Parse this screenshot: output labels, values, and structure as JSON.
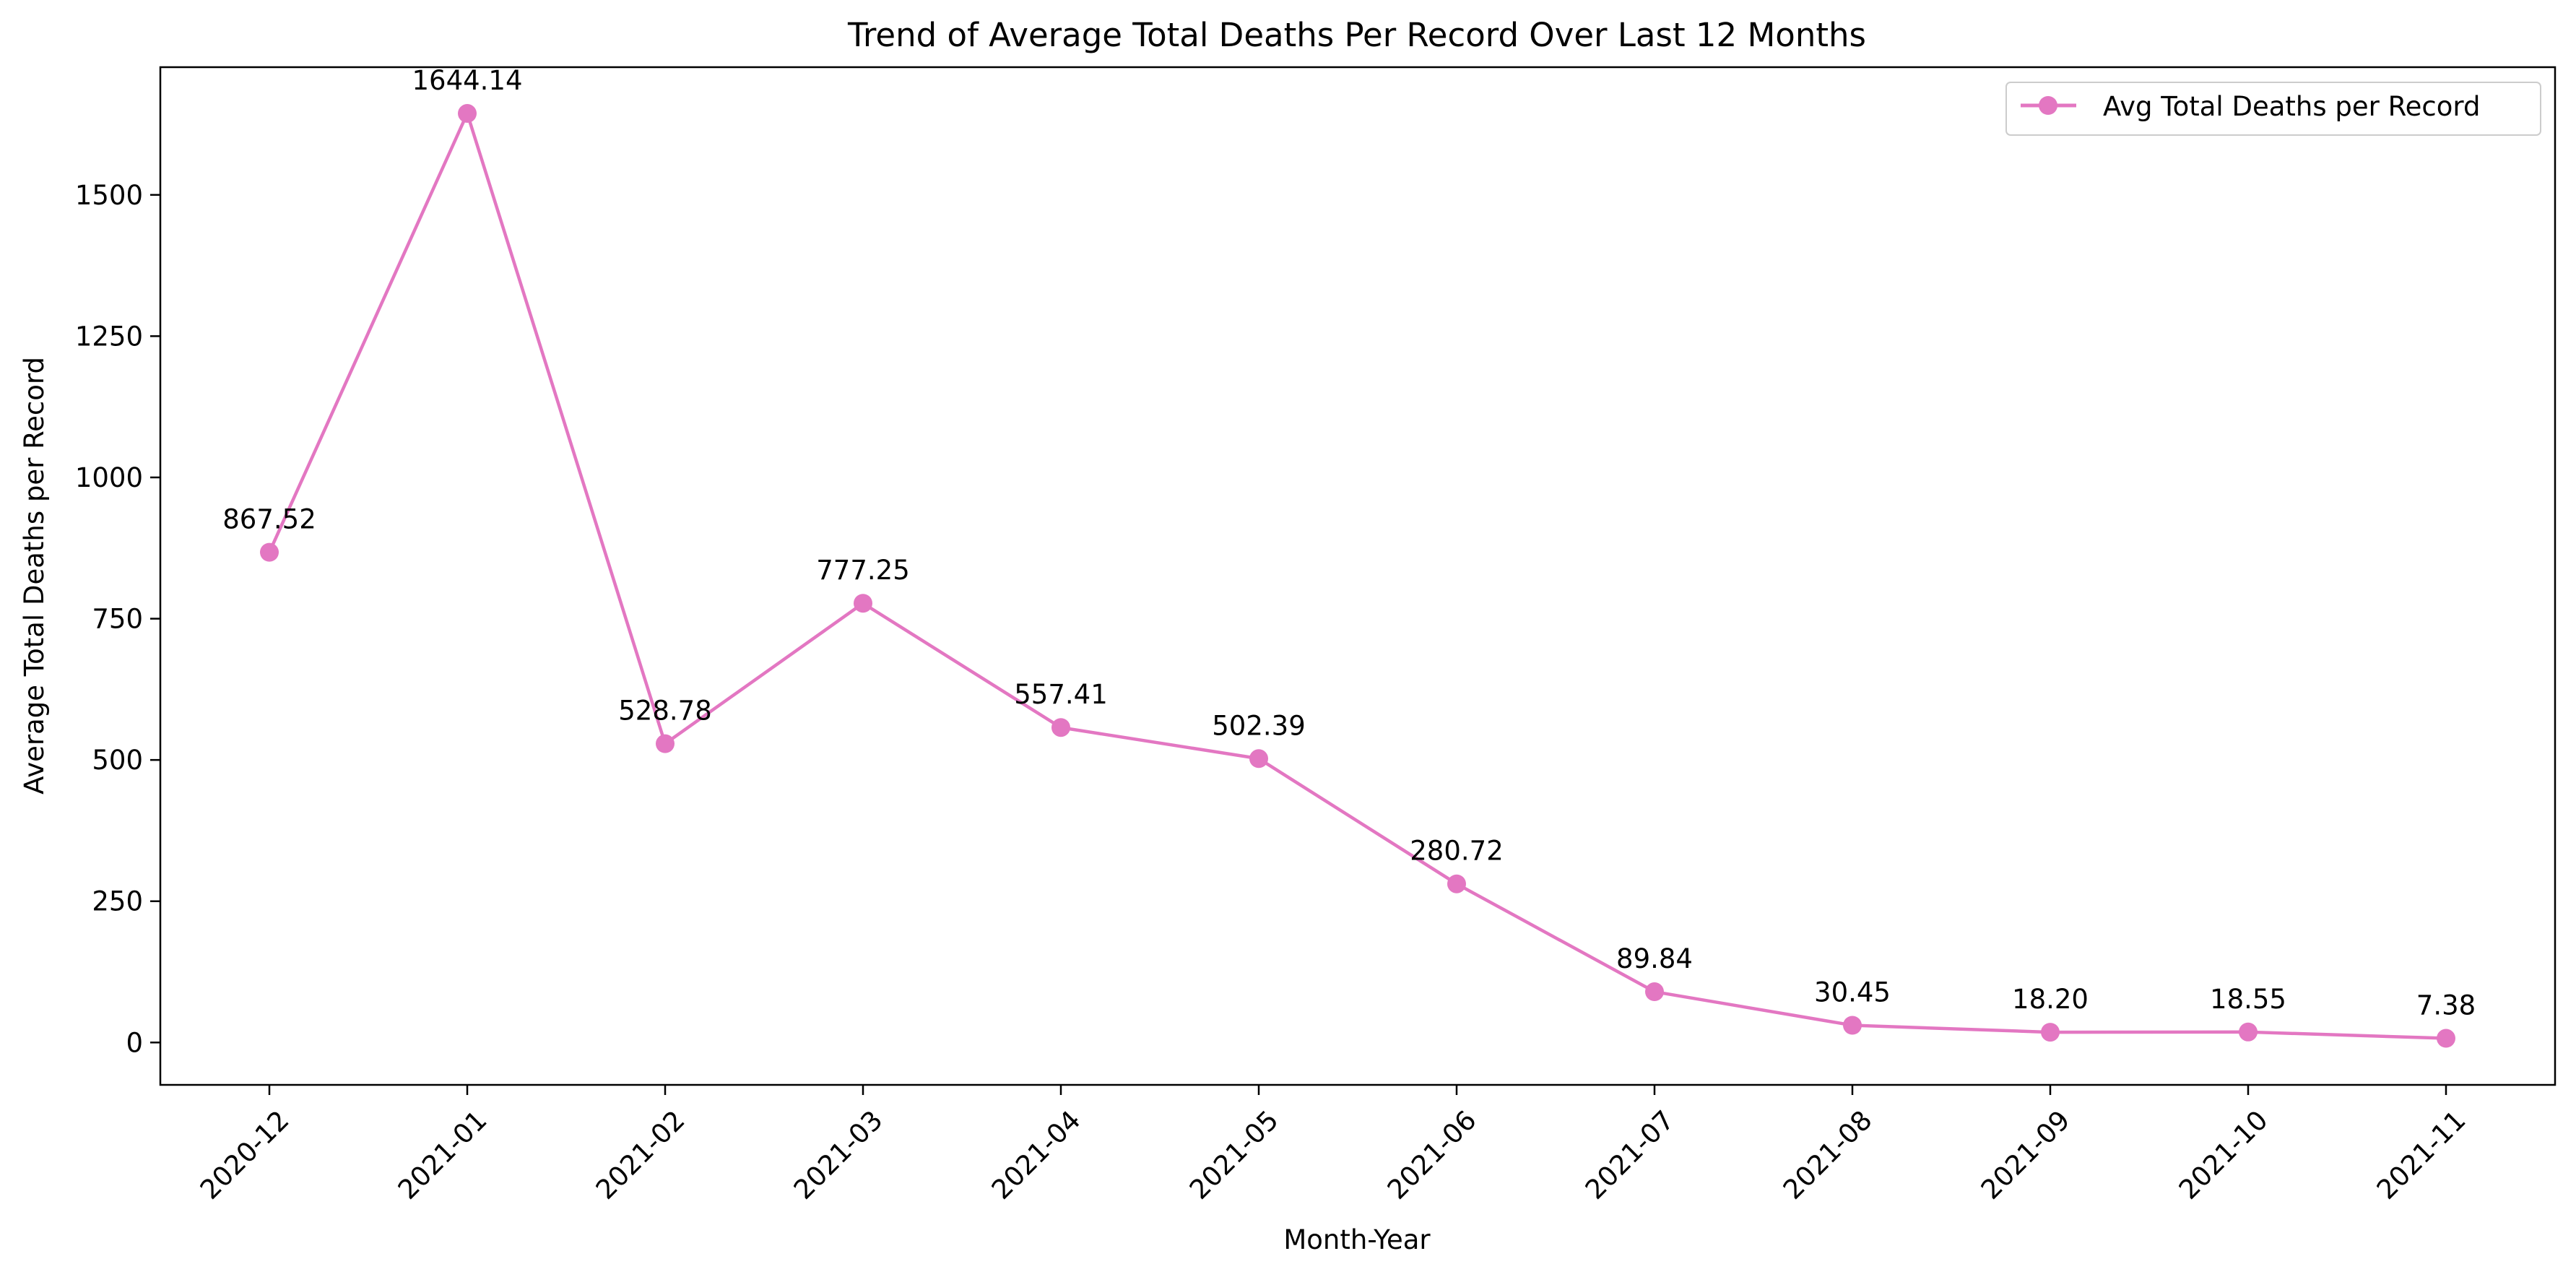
{
  "chart_data": {
    "type": "line",
    "title": "Trend of Average Total Deaths Per Record Over Last 12 Months",
    "xlabel": "Month-Year",
    "ylabel": "Average Total Deaths per Record",
    "categories": [
      "2020-12",
      "2021-01",
      "2021-02",
      "2021-03",
      "2021-04",
      "2021-05",
      "2021-06",
      "2021-07",
      "2021-08",
      "2021-09",
      "2021-10",
      "2021-11"
    ],
    "series": [
      {
        "name": "Avg Total Deaths per Record",
        "values": [
          867.52,
          1644.14,
          528.78,
          777.25,
          557.41,
          502.39,
          280.72,
          89.84,
          30.45,
          18.2,
          18.55,
          7.38
        ],
        "value_labels": [
          "867.52",
          "1644.14",
          "528.78",
          "777.25",
          "557.41",
          "502.39",
          "280.72",
          "89.84",
          "30.45",
          "18.20",
          "18.55",
          "7.38"
        ],
        "color": "#e377c2"
      }
    ],
    "ylim": [
      -75,
      1726
    ],
    "yticks": [
      0,
      250,
      500,
      750,
      1000,
      1250,
      1500
    ],
    "grid": false,
    "legend_position": "top-right"
  }
}
